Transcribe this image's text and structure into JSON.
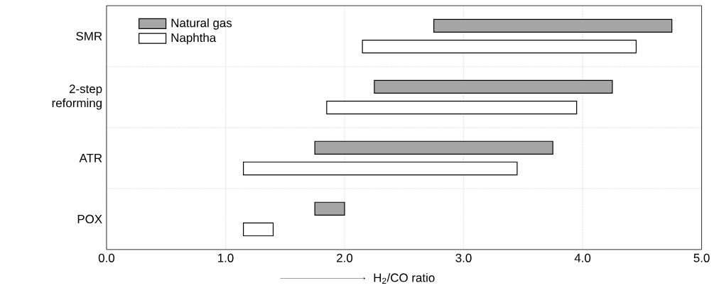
{
  "chart_data": {
    "type": "bar",
    "orientation": "horizontal",
    "xlabel": "H$_{2}$/CO ratio",
    "categories": [
      "SMR",
      "2-step reforming",
      "ATR",
      "POX"
    ],
    "series": [
      {
        "name": "Natural gas",
        "color": "#a6a6a6",
        "base": [
          2.75,
          2.25,
          1.75,
          1.75
        ],
        "values": [
          2.0,
          2.0,
          2.0,
          0.25
        ]
      },
      {
        "name": "Naphtha",
        "color": "#ffffff",
        "base": [
          2.15,
          1.85,
          1.15,
          1.15
        ],
        "values": [
          2.3,
          2.1,
          2.3,
          0.25
        ]
      }
    ],
    "xlim": [
      0,
      5
    ],
    "xticks": [
      {
        "value": 0,
        "label": "0.0"
      },
      {
        "value": 1,
        "label": "1.0"
      },
      {
        "value": 2,
        "label": "2.0"
      },
      {
        "value": 3,
        "label": "3.0"
      },
      {
        "value": 4,
        "label": "4.0"
      },
      {
        "value": 5,
        "label": "5.0"
      }
    ],
    "grid": true,
    "legend": "top left"
  }
}
